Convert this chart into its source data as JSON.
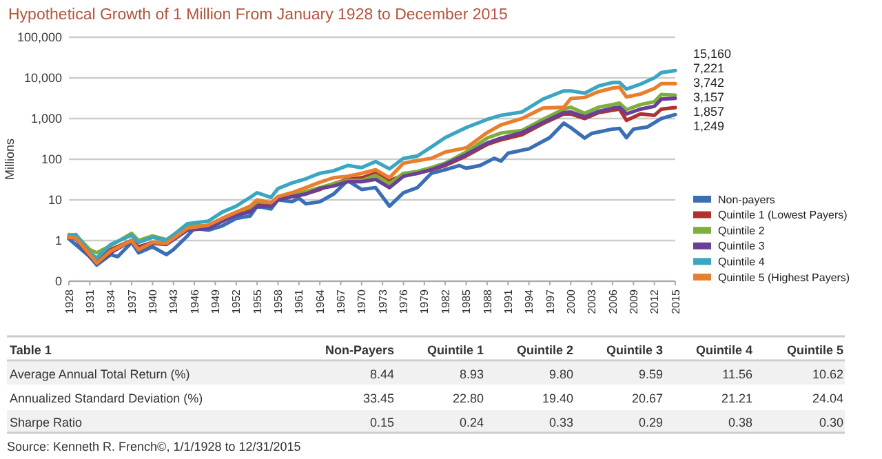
{
  "chart_data": [
    {
      "type": "line",
      "title": "Hypothetical Growth of 1 Million From January 1928 to December 2015",
      "ylabel": "Millions",
      "log": "y",
      "grid": "y",
      "legend": "right",
      "line_style": "solid",
      "marker": "none",
      "xlim": [
        1928,
        2015
      ],
      "xticks": [
        1928,
        1931,
        1934,
        1937,
        1940,
        1943,
        1946,
        1949,
        1952,
        1955,
        1958,
        1961,
        1964,
        1967,
        1970,
        1973,
        1976,
        1979,
        1982,
        1985,
        1988,
        1991,
        1994,
        1997,
        2000,
        2003,
        2006,
        2009,
        2012,
        2015
      ],
      "ylim": [
        0.1,
        100000
      ],
      "yticks": [
        {
          "value": 0.1,
          "label": "0"
        },
        1,
        10,
        100,
        {
          "value": 1000,
          "label": "1,000"
        },
        {
          "value": 10000,
          "label": "10,000"
        },
        {
          "value": 100000,
          "label": "100,000"
        }
      ],
      "series": [
        {
          "name": "Non-payers",
          "color": "#3a6eb5",
          "x": [
            1928,
            1931,
            1932,
            1934,
            1935,
            1937,
            1938,
            1940,
            1942,
            1943,
            1945,
            1946,
            1948,
            1950,
            1952,
            1954,
            1955,
            1957,
            1958,
            1960,
            1961,
            1962,
            1964,
            1966,
            1968,
            1970,
            1972,
            1974,
            1976,
            1978,
            1980,
            1982,
            1984,
            1985,
            1987,
            1989,
            1990,
            1991,
            1994,
            1997,
            1999,
            2000,
            2002,
            2003,
            2006,
            2007,
            2008,
            2009,
            2011,
            2013,
            2015
          ],
          "values": [
            1.1,
            0.4,
            0.25,
            0.45,
            0.4,
            0.9,
            0.5,
            0.7,
            0.45,
            0.6,
            1.3,
            2,
            1.8,
            2.3,
            3.5,
            4,
            7,
            6,
            10,
            9,
            11,
            8,
            9,
            14,
            30,
            18,
            20,
            7,
            15,
            20,
            45,
            55,
            70,
            60,
            70,
            105,
            90,
            140,
            180,
            340,
            770,
            600,
            330,
            430,
            550,
            570,
            340,
            550,
            620,
            1000,
            1249
          ],
          "value_labels": [
            null,
            null,
            null,
            null,
            null,
            null,
            null,
            null,
            null,
            null,
            null,
            null,
            null,
            null,
            null,
            null,
            null,
            null,
            null,
            null,
            null,
            null,
            null,
            null,
            null,
            null,
            null,
            null,
            null,
            null,
            null,
            null,
            null,
            null,
            null,
            null,
            null,
            null,
            null,
            null,
            null,
            null,
            null,
            null,
            null,
            null,
            null,
            null,
            null,
            null,
            "1,249"
          ]
        },
        {
          "name": "Quintile 1 (Lowest Payers)",
          "color": "#b0312f",
          "x": [
            1928,
            1929,
            1931,
            1932,
            1934,
            1937,
            1938,
            1940,
            1942,
            1945,
            1948,
            1950,
            1952,
            1954,
            1955,
            1957,
            1958,
            1960,
            1962,
            1964,
            1966,
            1968,
            1970,
            1972,
            1974,
            1976,
            1978,
            1980,
            1982,
            1985,
            1988,
            1990,
            1993,
            1996,
            1999,
            2000,
            2002,
            2004,
            2006,
            2007,
            2008,
            2010,
            2012,
            2013,
            2015
          ],
          "values": [
            1.2,
            1.15,
            0.5,
            0.35,
            0.6,
            1.0,
            0.7,
            0.9,
            0.85,
            2,
            2.1,
            3,
            4.5,
            5.5,
            8,
            7.5,
            11,
            12,
            14,
            18,
            25,
            32,
            35,
            45,
            30,
            40,
            45,
            55,
            70,
            120,
            230,
            300,
            400,
            750,
            1300,
            1300,
            1000,
            1400,
            1600,
            1700,
            900,
            1300,
            1200,
            1700,
            1857
          ],
          "value_labels": [
            null,
            null,
            null,
            null,
            null,
            null,
            null,
            null,
            null,
            null,
            null,
            null,
            null,
            null,
            null,
            null,
            null,
            null,
            null,
            null,
            null,
            null,
            null,
            null,
            null,
            null,
            null,
            null,
            null,
            null,
            null,
            null,
            null,
            null,
            null,
            null,
            null,
            null,
            null,
            null,
            null,
            null,
            null,
            null,
            "1,857"
          ]
        },
        {
          "name": "Quintile 2",
          "color": "#7fae3a",
          "x": [
            1928,
            1929,
            1931,
            1932,
            1934,
            1937,
            1938,
            1940,
            1942,
            1945,
            1948,
            1950,
            1952,
            1954,
            1955,
            1957,
            1958,
            1960,
            1962,
            1964,
            1966,
            1968,
            1970,
            1972,
            1974,
            1976,
            1978,
            1980,
            1982,
            1985,
            1988,
            1990,
            1993,
            1996,
            1999,
            2000,
            2002,
            2004,
            2006,
            2007,
            2008,
            2010,
            2012,
            2013,
            2015
          ],
          "values": [
            1.4,
            1.35,
            0.6,
            0.5,
            0.75,
            1.5,
            1.0,
            1.3,
            1.05,
            2.3,
            2.3,
            3.5,
            5,
            6.5,
            9,
            8.5,
            11,
            13,
            16,
            20,
            25,
            30,
            30,
            40,
            25,
            45,
            50,
            62,
            80,
            150,
            330,
            440,
            510,
            950,
            1700,
            1900,
            1350,
            1900,
            2200,
            2400,
            1650,
            2200,
            2600,
            3900,
            3742
          ],
          "value_labels": [
            null,
            null,
            null,
            null,
            null,
            null,
            null,
            null,
            null,
            null,
            null,
            null,
            null,
            null,
            null,
            null,
            null,
            null,
            null,
            null,
            null,
            null,
            null,
            null,
            null,
            null,
            null,
            null,
            null,
            null,
            null,
            null,
            null,
            null,
            null,
            null,
            null,
            null,
            null,
            null,
            null,
            null,
            null,
            null,
            "3,742"
          ]
        },
        {
          "name": "Quintile 3",
          "color": "#6a3f96",
          "x": [
            1928,
            1929,
            1931,
            1932,
            1934,
            1937,
            1938,
            1940,
            1942,
            1945,
            1948,
            1950,
            1952,
            1954,
            1955,
            1957,
            1958,
            1960,
            1962,
            1964,
            1966,
            1968,
            1970,
            1972,
            1974,
            1976,
            1978,
            1980,
            1982,
            1985,
            1988,
            1990,
            1993,
            1996,
            1999,
            2000,
            2002,
            2004,
            2006,
            2007,
            2008,
            2010,
            2012,
            2013,
            2015
          ],
          "values": [
            1.2,
            1.1,
            0.4,
            0.28,
            0.5,
            1.0,
            0.6,
            0.85,
            0.8,
            1.8,
            2.0,
            3,
            4.2,
            5,
            7,
            7,
            10,
            12,
            14,
            19,
            22,
            28,
            28,
            32,
            20,
            38,
            45,
            55,
            75,
            130,
            250,
            330,
            450,
            800,
            1400,
            1450,
            1100,
            1500,
            1800,
            1900,
            1300,
            1700,
            2000,
            3000,
            3157
          ],
          "value_labels": [
            null,
            null,
            null,
            null,
            null,
            null,
            null,
            null,
            null,
            null,
            null,
            null,
            null,
            null,
            null,
            null,
            null,
            null,
            null,
            null,
            null,
            null,
            null,
            null,
            null,
            null,
            null,
            null,
            null,
            null,
            null,
            null,
            null,
            null,
            null,
            null,
            null,
            null,
            null,
            null,
            null,
            null,
            null,
            null,
            "3,157"
          ]
        },
        {
          "name": "Quintile 4",
          "color": "#3aa6c2",
          "x": [
            1928,
            1929,
            1931,
            1932,
            1934,
            1937,
            1938,
            1940,
            1942,
            1945,
            1948,
            1950,
            1952,
            1954,
            1955,
            1957,
            1958,
            1960,
            1962,
            1964,
            1966,
            1968,
            1970,
            1972,
            1974,
            1976,
            1978,
            1980,
            1982,
            1985,
            1988,
            1990,
            1993,
            1996,
            1999,
            2000,
            2002,
            2004,
            2006,
            2007,
            2008,
            2010,
            2012,
            2013,
            2015
          ],
          "values": [
            1.3,
            1.4,
            0.5,
            0.37,
            0.8,
            1.35,
            0.9,
            1.2,
            1.0,
            2.6,
            3,
            5,
            7,
            11.5,
            15,
            11.5,
            19,
            26,
            33,
            45,
            52,
            70,
            62,
            88,
            58,
            105,
            120,
            200,
            340,
            600,
            950,
            1200,
            1450,
            3000,
            4800,
            4800,
            4200,
            6300,
            7700,
            7700,
            5300,
            7000,
            10000,
            13500,
            15160
          ],
          "value_labels": [
            null,
            null,
            null,
            null,
            null,
            null,
            null,
            null,
            null,
            null,
            null,
            null,
            null,
            null,
            null,
            null,
            null,
            null,
            null,
            null,
            null,
            null,
            null,
            null,
            null,
            null,
            null,
            null,
            null,
            null,
            null,
            null,
            null,
            null,
            null,
            null,
            null,
            null,
            null,
            null,
            null,
            null,
            null,
            null,
            "15,160"
          ]
        },
        {
          "name": "Quintile 5 (Highest Payers)",
          "color": "#e97f2c",
          "x": [
            1928,
            1929,
            1931,
            1932,
            1934,
            1937,
            1938,
            1940,
            1942,
            1945,
            1948,
            1950,
            1952,
            1954,
            1955,
            1957,
            1958,
            1960,
            1962,
            1964,
            1966,
            1968,
            1970,
            1972,
            1974,
            1976,
            1978,
            1980,
            1982,
            1985,
            1988,
            1990,
            1993,
            1996,
            1999,
            2000,
            2002,
            2004,
            2006,
            2007,
            2008,
            2010,
            2012,
            2013,
            2015
          ],
          "values": [
            1.2,
            1.15,
            0.45,
            0.28,
            0.55,
            1.0,
            0.6,
            0.9,
            0.85,
            2,
            2.4,
            3.5,
            5,
            7,
            10,
            8.5,
            12,
            15,
            20,
            27,
            35,
            38,
            45,
            55,
            35,
            80,
            92,
            105,
            150,
            190,
            450,
            700,
            1000,
            1800,
            1900,
            3100,
            3300,
            4600,
            5600,
            5900,
            3400,
            4000,
            5500,
            7200,
            7221
          ],
          "value_labels": [
            null,
            null,
            null,
            null,
            null,
            null,
            null,
            null,
            null,
            null,
            null,
            null,
            null,
            null,
            null,
            null,
            null,
            null,
            null,
            null,
            null,
            null,
            null,
            null,
            null,
            null,
            null,
            null,
            null,
            null,
            null,
            null,
            null,
            null,
            null,
            null,
            null,
            null,
            null,
            null,
            null,
            null,
            null,
            null,
            "7,221"
          ]
        }
      ]
    },
    {
      "type": "other",
      "title": "Table 1",
      "categories": [
        "Non-Payers",
        "Quintile 1",
        "Quintile 2",
        "Quintile 3",
        "Quintile 4",
        "Quintile 5"
      ],
      "y_categories": [
        "Average Annual Total Return (%)",
        "Annualized Standard Deviation (%)",
        "Sharpe Ratio"
      ],
      "cell_labels": [
        [
          "8.44",
          "8.93",
          "9.80",
          "9.59",
          "11.56",
          "10.62"
        ],
        [
          "33.45",
          "22.80",
          "19.40",
          "20.67",
          "21.21",
          "24.04"
        ],
        [
          "0.15",
          "0.24",
          "0.33",
          "0.29",
          "0.38",
          "0.30"
        ]
      ],
      "annotations": [
        "Source: Kenneth R. French©, 1/1/1928 to 12/31/2015"
      ]
    }
  ]
}
